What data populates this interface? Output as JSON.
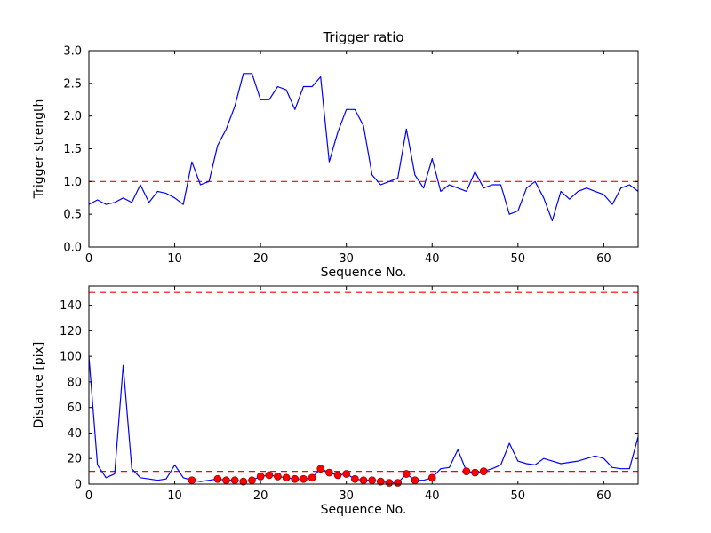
{
  "figure": {
    "background": "#ffffff",
    "line_color": "#0000ff",
    "dashed_color": "#ff0000",
    "marker_color": "#ff0000",
    "marker_edge_color": "#8b0000",
    "axis_color": "#000000"
  },
  "chart_data": [
    {
      "type": "line",
      "title": "Trigger ratio",
      "xlabel": "Sequence No.",
      "ylabel": "Trigger strength",
      "xlim": [
        0,
        64
      ],
      "ylim": [
        0.0,
        3.0
      ],
      "xticks": [
        0,
        10,
        20,
        30,
        40,
        50,
        60
      ],
      "yticks": [
        0.0,
        0.5,
        1.0,
        1.5,
        2.0,
        2.5,
        3.0
      ],
      "ytick_decimals": 1,
      "grid": false,
      "legend": "none",
      "hlines": [
        1.0
      ],
      "x": [
        0,
        1,
        2,
        3,
        4,
        5,
        6,
        7,
        8,
        9,
        10,
        11,
        12,
        13,
        14,
        15,
        16,
        17,
        18,
        19,
        20,
        21,
        22,
        23,
        24,
        25,
        26,
        27,
        28,
        29,
        30,
        31,
        32,
        33,
        34,
        35,
        36,
        37,
        38,
        39,
        40,
        41,
        42,
        43,
        44,
        45,
        46,
        47,
        48,
        49,
        50,
        51,
        52,
        53,
        54,
        55,
        56,
        57,
        58,
        59,
        60,
        61,
        62,
        63,
        64
      ],
      "y": [
        0.65,
        0.72,
        0.65,
        0.68,
        0.75,
        0.68,
        0.95,
        0.68,
        0.85,
        0.82,
        0.75,
        0.65,
        1.3,
        0.95,
        1.0,
        1.55,
        1.8,
        2.15,
        2.65,
        2.65,
        2.25,
        2.25,
        2.45,
        2.4,
        2.1,
        2.45,
        2.45,
        2.6,
        1.3,
        1.75,
        2.1,
        2.1,
        1.85,
        1.1,
        0.95,
        1.0,
        1.05,
        1.8,
        1.1,
        0.9,
        1.35,
        0.85,
        0.95,
        0.9,
        0.85,
        1.15,
        0.9,
        0.95,
        0.95,
        0.5,
        0.55,
        0.9,
        1.0,
        0.75,
        0.4,
        0.85,
        0.73,
        0.85,
        0.9,
        0.85,
        0.8,
        0.65,
        0.9,
        0.95,
        0.85
      ]
    },
    {
      "type": "line",
      "title": "",
      "xlabel": "Sequence No.",
      "ylabel": "Distance [pix]",
      "xlim": [
        0,
        64
      ],
      "ylim": [
        0,
        155
      ],
      "xticks": [
        0,
        10,
        20,
        30,
        40,
        50,
        60
      ],
      "yticks": [
        0,
        20,
        40,
        60,
        80,
        100,
        120,
        140
      ],
      "ytick_decimals": 0,
      "grid": false,
      "legend": "none",
      "hlines": [
        150,
        10
      ],
      "x": [
        0,
        1,
        2,
        3,
        4,
        5,
        6,
        7,
        8,
        9,
        10,
        11,
        12,
        13,
        14,
        15,
        16,
        17,
        18,
        19,
        20,
        21,
        22,
        23,
        24,
        25,
        26,
        27,
        28,
        29,
        30,
        31,
        32,
        33,
        34,
        35,
        36,
        37,
        38,
        39,
        40,
        41,
        42,
        43,
        44,
        45,
        46,
        47,
        48,
        49,
        50,
        51,
        52,
        53,
        54,
        55,
        56,
        57,
        58,
        59,
        60,
        61,
        62,
        63,
        64
      ],
      "y": [
        100,
        15,
        5,
        8,
        93,
        12,
        5,
        4,
        3,
        4,
        15,
        5,
        3,
        2,
        3,
        4,
        3,
        3,
        2,
        3,
        6,
        7,
        6,
        5,
        4,
        4,
        5,
        12,
        9,
        7,
        8,
        4,
        3,
        3,
        2,
        1,
        1,
        8,
        3,
        3,
        5,
        12,
        13,
        27,
        10,
        9,
        10,
        12,
        15,
        32,
        18,
        16,
        15,
        20,
        18,
        16,
        17,
        18,
        20,
        22,
        20,
        13,
        12,
        12,
        37
      ],
      "markers": {
        "x": [
          12,
          15,
          16,
          17,
          18,
          19,
          20,
          21,
          22,
          23,
          24,
          25,
          26,
          27,
          28,
          29,
          30,
          31,
          32,
          33,
          34,
          35,
          36,
          37,
          38,
          40,
          44,
          45,
          46
        ],
        "y": [
          3,
          4,
          3,
          3,
          2,
          3,
          6,
          7,
          6,
          5,
          4,
          4,
          5,
          12,
          9,
          7,
          8,
          4,
          3,
          3,
          2,
          1,
          1,
          8,
          3,
          5,
          10,
          9,
          10
        ]
      }
    }
  ]
}
